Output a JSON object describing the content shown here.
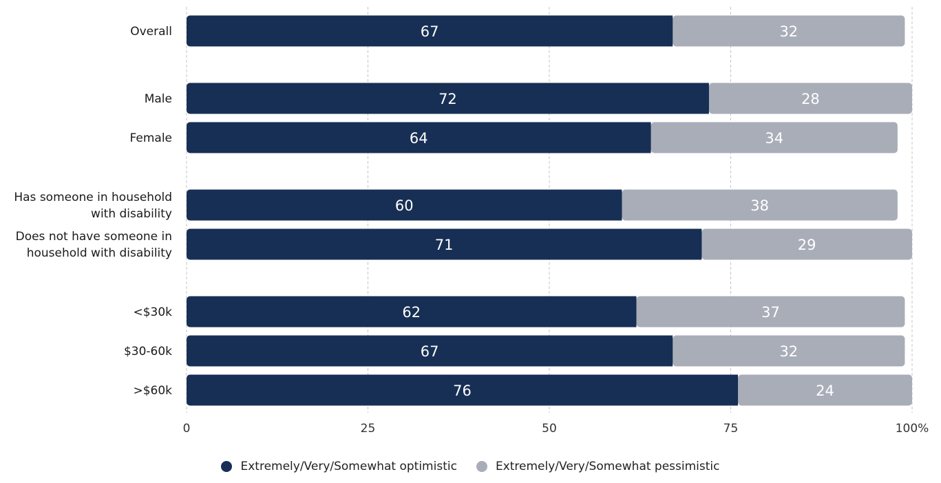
{
  "chart_data": {
    "type": "bar",
    "orientation": "horizontal",
    "stacked": true,
    "categories": [
      [
        "Overall"
      ],
      [
        "Male"
      ],
      [
        "Female"
      ],
      [
        "Has someone in household",
        "with disability"
      ],
      [
        "Does not have someone in",
        "household with disability"
      ],
      [
        "<$30k"
      ],
      [
        "$30-60k"
      ],
      [
        ">$60k"
      ]
    ],
    "groups": [
      [
        0
      ],
      [
        1,
        2
      ],
      [
        3,
        4
      ],
      [
        5,
        6,
        7
      ]
    ],
    "series": [
      {
        "name": "Extremely/Very/Somewhat optimistic",
        "color": "#172f54",
        "values": [
          67,
          72,
          64,
          60,
          71,
          62,
          67,
          76
        ]
      },
      {
        "name": "Extremely/Very/Somewhat pessimistic",
        "color": "#a9adb8",
        "values": [
          32,
          28,
          34,
          38,
          29,
          37,
          32,
          24
        ]
      }
    ],
    "xlim": [
      0,
      100
    ],
    "xticks": [
      "0",
      "25",
      "50",
      "75",
      "100%"
    ],
    "grid": "vertical dashed",
    "legend_position": "bottom-center"
  }
}
